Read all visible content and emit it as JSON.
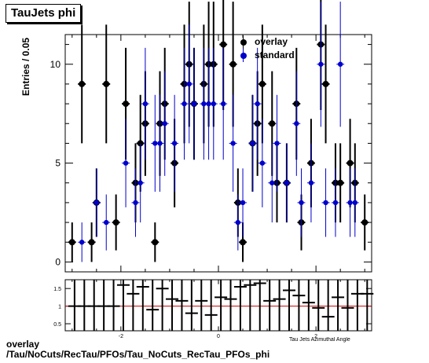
{
  "chart_data": [
    {
      "type": "scatter",
      "title": "TauJets phi",
      "ylabel": "Entries / 0.05",
      "xlim": [
        -3.1416,
        3.1416
      ],
      "ylim": [
        -0.5,
        11.5
      ],
      "yticks": [
        0,
        5,
        10
      ],
      "series": [
        {
          "name": "overlay",
          "color": "#000000",
          "x": [
            -3.0,
            -2.8,
            -2.6,
            -2.5,
            -2.3,
            -2.1,
            -1.9,
            -1.7,
            -1.6,
            -1.5,
            -1.3,
            -1.2,
            -1.1,
            -0.9,
            -0.7,
            -0.6,
            -0.5,
            -0.3,
            -0.2,
            -0.1,
            0.1,
            0.3,
            0.4,
            0.5,
            0.7,
            0.8,
            0.9,
            1.1,
            1.2,
            1.4,
            1.6,
            1.7,
            1.9,
            2.1,
            2.2,
            2.4,
            2.5,
            2.7,
            2.8,
            3.0
          ],
          "y": [
            1,
            9,
            1,
            3,
            9,
            2,
            8,
            4,
            6,
            7,
            1,
            7,
            8,
            5,
            9,
            10,
            8,
            9,
            10,
            10,
            11,
            10,
            3,
            1,
            6,
            7,
            9,
            7,
            4,
            4,
            8,
            2,
            5,
            11,
            9,
            4,
            4,
            5,
            4,
            2
          ]
        },
        {
          "name": "standard",
          "color": "#0000cc",
          "x": [
            -2.8,
            -2.5,
            -2.3,
            -1.9,
            -1.7,
            -1.6,
            -1.5,
            -1.3,
            -1.2,
            -1.1,
            -0.9,
            -0.7,
            -0.6,
            -0.5,
            -0.3,
            -0.2,
            -0.1,
            0.1,
            0.3,
            0.4,
            0.5,
            0.7,
            0.8,
            0.9,
            1.1,
            1.2,
            1.4,
            1.6,
            1.7,
            1.9,
            2.1,
            2.2,
            2.4,
            2.5,
            2.7,
            2.8
          ],
          "y": [
            1,
            3,
            2,
            5,
            3,
            4,
            8,
            6,
            6,
            7,
            6,
            8,
            9,
            8,
            8,
            8,
            8,
            8,
            6,
            2,
            3,
            6,
            8,
            5,
            4,
            6,
            4,
            7,
            3,
            4,
            10,
            3,
            3,
            10,
            3,
            3
          ]
        }
      ],
      "legend": {
        "position": "top-right",
        "entries": [
          {
            "label": "overlay",
            "color": "#000000"
          },
          {
            "label": "standard",
            "color": "#0000cc"
          }
        ]
      }
    },
    {
      "type": "scatter",
      "title": "",
      "ylabel": "",
      "xlabel": "Tau Jets Azimuthal Angle",
      "xlim": [
        -3.1416,
        3.1416
      ],
      "ylim": [
        0.3,
        1.75
      ],
      "yticks": [
        0.5,
        1,
        1.5
      ],
      "xticks": [
        -2,
        0,
        2
      ],
      "reference_line": 1,
      "reference_color": "#cc0000",
      "series": [
        {
          "name": "",
          "color": "#000000",
          "x": [
            -2.95,
            -2.75,
            -2.55,
            -2.35,
            -2.15,
            -1.95,
            -1.75,
            -1.55,
            -1.35,
            -1.15,
            -0.95,
            -0.75,
            -0.55,
            -0.35,
            -0.15,
            0.05,
            0.25,
            0.45,
            0.65,
            0.85,
            1.05,
            1.25,
            1.45,
            1.65,
            1.85,
            2.05,
            2.25,
            2.45,
            2.65,
            2.85,
            3.05
          ],
          "y": [
            1.0,
            1.0,
            1.0,
            1.0,
            1.0,
            1.6,
            1.35,
            1.55,
            0.9,
            1.5,
            1.2,
            1.15,
            0.8,
            1.15,
            0.75,
            1.25,
            1.2,
            1.55,
            1.6,
            1.65,
            1.15,
            1.2,
            1.45,
            1.3,
            1.1,
            0.95,
            0.7,
            1.25,
            0.95,
            1.35,
            1.35
          ]
        }
      ]
    }
  ],
  "footer": {
    "line1": "overlay",
    "line2": "/Tau/NoCuts/RecTau/PFOs/Tau_NoCuts_RecTau_PFOs_phi"
  }
}
